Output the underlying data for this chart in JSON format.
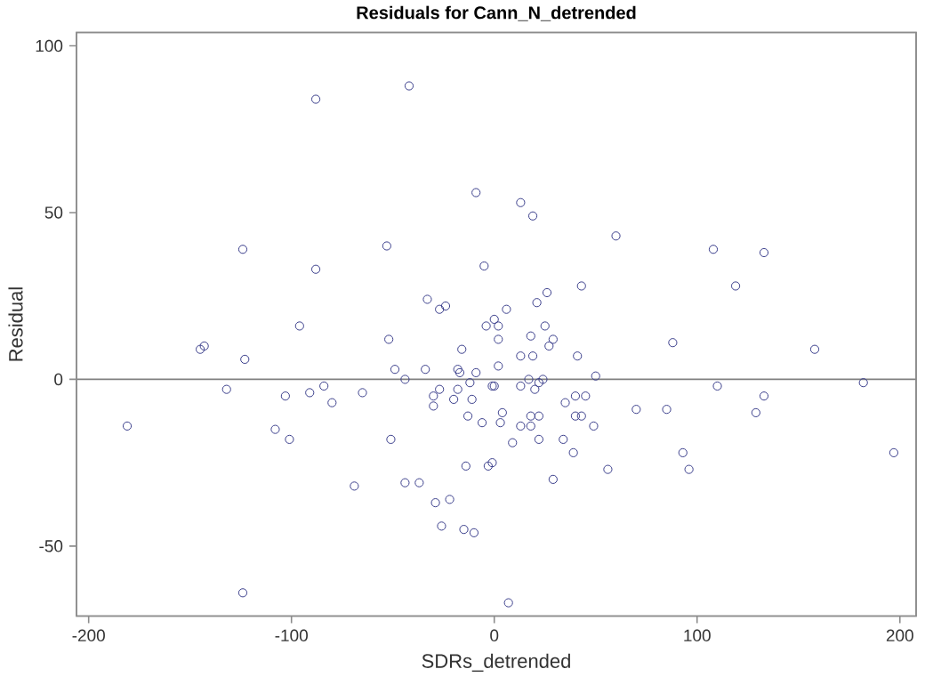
{
  "chart_data": {
    "type": "scatter",
    "title": "Residuals for Cann_N_detrended",
    "xlabel": "SDRs_detrended",
    "ylabel": "Residual",
    "xlim": [
      -206,
      208
    ],
    "ylim": [
      -71,
      104
    ],
    "xticks": [
      -200,
      -100,
      0,
      100,
      200
    ],
    "yticks": [
      -50,
      0,
      50,
      100
    ],
    "grid": false,
    "legend": false,
    "marker": "circle",
    "ref_lines": [
      {
        "axis": "y",
        "value": 0,
        "color": "#808080"
      }
    ],
    "series": [
      {
        "color": "#3b3f8c",
        "x": [
          -42,
          -88,
          -9,
          -124,
          -53,
          -5,
          -88,
          -33,
          -27,
          -24,
          -96,
          -4,
          0,
          -145,
          -143,
          -52,
          -16,
          -123,
          -49,
          -44,
          -34,
          -18,
          -17,
          -9,
          -12,
          -132,
          -103,
          -91,
          -84,
          -80,
          -65,
          -30,
          -27,
          -30,
          -18,
          -20,
          -11,
          -13,
          -6,
          -181,
          -108,
          -101,
          -51,
          -1,
          0,
          13,
          19,
          60,
          108,
          133,
          43,
          119,
          26,
          21,
          6,
          2,
          2,
          25,
          18,
          29,
          27,
          88,
          158,
          13,
          19,
          41,
          2,
          50,
          13,
          17,
          24,
          22,
          20,
          110,
          182,
          40,
          45,
          35,
          133,
          70,
          85,
          129,
          4,
          3,
          18,
          22,
          18,
          13,
          40,
          43,
          49,
          9,
          22,
          34,
          -69,
          -44,
          -37,
          -29,
          -22,
          -26,
          -15,
          -10,
          -14,
          -3,
          -1,
          -124,
          39,
          29,
          56,
          93,
          96,
          197,
          7
        ],
        "values": [
          88,
          84,
          56,
          39,
          40,
          34,
          33,
          24,
          21,
          22,
          16,
          16,
          18,
          9,
          10,
          12,
          9,
          6,
          3,
          0,
          3,
          3,
          2,
          2,
          -1,
          -3,
          -5,
          -4,
          -2,
          -7,
          -4,
          -5,
          -3,
          -8,
          -3,
          -6,
          -6,
          -11,
          -13,
          -14,
          -15,
          -18,
          -18,
          -2,
          -2,
          53,
          49,
          43,
          39,
          38,
          28,
          28,
          26,
          23,
          21,
          16,
          12,
          16,
          13,
          12,
          10,
          11,
          9,
          7,
          7,
          7,
          4,
          1,
          -2,
          0,
          0,
          -1,
          -3,
          -2,
          -1,
          -5,
          -5,
          -7,
          -5,
          -9,
          -9,
          -10,
          -10,
          -13,
          -11,
          -11,
          -14,
          -14,
          -11,
          -11,
          -14,
          -19,
          -18,
          -18,
          -32,
          -31,
          -31,
          -37,
          -36,
          -44,
          -45,
          -46,
          -26,
          -26,
          -25,
          -64,
          -22,
          -30,
          -27,
          -22,
          -27,
          -22,
          -67
        ]
      }
    ]
  }
}
